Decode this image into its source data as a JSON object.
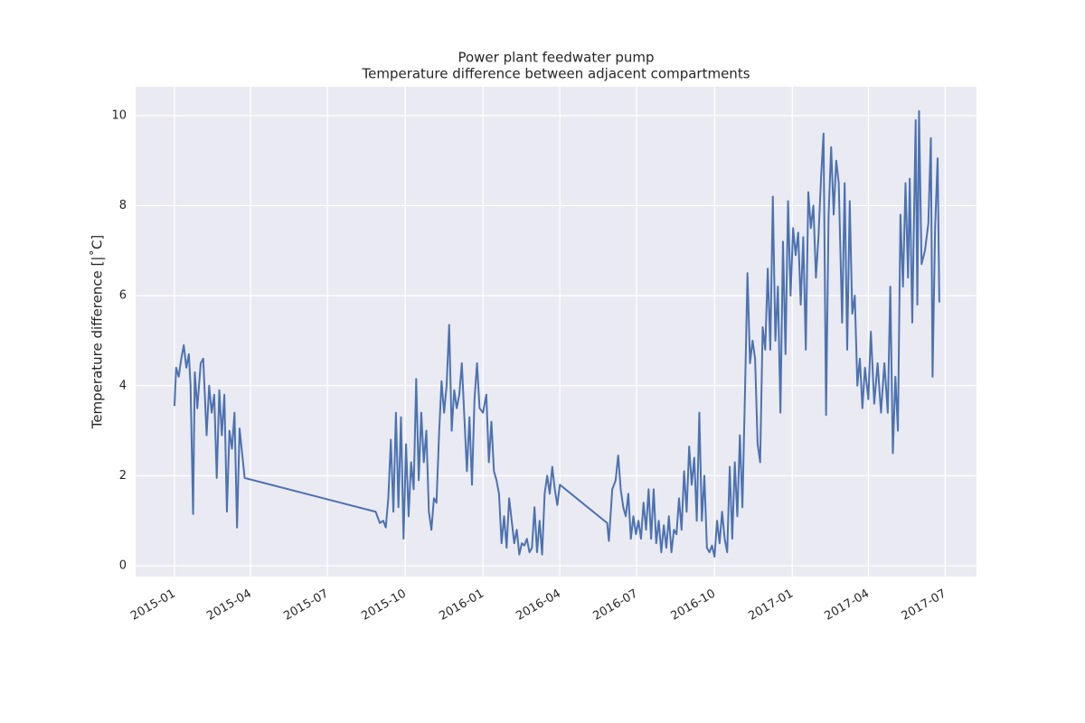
{
  "chart_data": {
    "type": "line",
    "title": "Power plant feedwater pump",
    "subtitle": "Temperature difference between adjacent compartments",
    "y_label": "Temperature difference [|˚C]",
    "color": "#4c72b0",
    "grid": true,
    "ylim": [
      -0.24,
      10.64
    ],
    "yticks": [
      0,
      2,
      4,
      6,
      8,
      10
    ],
    "xlim": [
      "2014-11-16",
      "2017-08-07"
    ],
    "xticks": [
      "2015-01",
      "2015-04",
      "2015-07",
      "2015-10",
      "2016-01",
      "2016-04",
      "2016-07",
      "2016-10",
      "2017-01",
      "2017-04",
      "2017-07"
    ],
    "x": [
      "2015-01-01",
      "2015-01-03",
      "2015-01-06",
      "2015-01-09",
      "2015-01-12",
      "2015-01-15",
      "2015-01-18",
      "2015-01-20",
      "2015-01-23",
      "2015-01-25",
      "2015-01-28",
      "2015-02-01",
      "2015-02-04",
      "2015-02-08",
      "2015-02-11",
      "2015-02-14",
      "2015-02-17",
      "2015-02-20",
      "2015-02-23",
      "2015-02-26",
      "2015-03-01",
      "2015-03-04",
      "2015-03-07",
      "2015-03-10",
      "2015-03-13",
      "2015-03-16",
      "2015-03-19",
      "2015-03-25",
      "2015-08-27",
      "2015-09-01",
      "2015-09-05",
      "2015-09-08",
      "2015-09-11",
      "2015-09-14",
      "2015-09-17",
      "2015-09-20",
      "2015-09-23",
      "2015-09-26",
      "2015-09-29",
      "2015-10-02",
      "2015-10-05",
      "2015-10-08",
      "2015-10-11",
      "2015-10-14",
      "2015-10-17",
      "2015-10-20",
      "2015-10-23",
      "2015-10-26",
      "2015-10-29",
      "2015-11-01",
      "2015-11-04",
      "2015-11-07",
      "2015-11-10",
      "2015-11-13",
      "2015-11-16",
      "2015-11-19",
      "2015-11-22",
      "2015-11-25",
      "2015-11-28",
      "2015-12-01",
      "2015-12-04",
      "2015-12-07",
      "2015-12-10",
      "2015-12-13",
      "2015-12-16",
      "2015-12-19",
      "2015-12-22",
      "2015-12-25",
      "2015-12-28",
      "2016-01-01",
      "2016-01-05",
      "2016-01-08",
      "2016-01-11",
      "2016-01-14",
      "2016-01-17",
      "2016-01-20",
      "2016-01-23",
      "2016-01-26",
      "2016-01-29",
      "2016-02-01",
      "2016-02-04",
      "2016-02-07",
      "2016-02-10",
      "2016-02-13",
      "2016-02-16",
      "2016-02-19",
      "2016-02-22",
      "2016-02-25",
      "2016-02-28",
      "2016-03-02",
      "2016-03-05",
      "2016-03-08",
      "2016-03-11",
      "2016-03-14",
      "2016-03-17",
      "2016-03-20",
      "2016-03-23",
      "2016-03-26",
      "2016-03-29",
      "2016-04-01",
      "2016-05-27",
      "2016-05-29",
      "2016-06-02",
      "2016-06-06",
      "2016-06-09",
      "2016-06-12",
      "2016-06-15",
      "2016-06-18",
      "2016-06-21",
      "2016-06-24",
      "2016-06-27",
      "2016-06-30",
      "2016-07-03",
      "2016-07-06",
      "2016-07-09",
      "2016-07-12",
      "2016-07-15",
      "2016-07-18",
      "2016-07-21",
      "2016-07-24",
      "2016-07-27",
      "2016-07-30",
      "2016-08-02",
      "2016-08-05",
      "2016-08-08",
      "2016-08-11",
      "2016-08-14",
      "2016-08-17",
      "2016-08-20",
      "2016-08-23",
      "2016-08-26",
      "2016-08-29",
      "2016-09-01",
      "2016-09-04",
      "2016-09-07",
      "2016-09-10",
      "2016-09-13",
      "2016-09-16",
      "2016-09-19",
      "2016-09-22",
      "2016-09-25",
      "2016-09-28",
      "2016-10-01",
      "2016-10-04",
      "2016-10-07",
      "2016-10-10",
      "2016-10-13",
      "2016-10-16",
      "2016-10-19",
      "2016-10-22",
      "2016-10-25",
      "2016-10-28",
      "2016-10-31",
      "2016-11-03",
      "2016-11-06",
      "2016-11-09",
      "2016-11-12",
      "2016-11-15",
      "2016-11-18",
      "2016-11-21",
      "2016-11-24",
      "2016-11-27",
      "2016-11-30",
      "2016-12-03",
      "2016-12-06",
      "2016-12-09",
      "2016-12-12",
      "2016-12-15",
      "2016-12-18",
      "2016-12-21",
      "2016-12-24",
      "2016-12-27",
      "2016-12-30",
      "2017-01-02",
      "2017-01-05",
      "2017-01-08",
      "2017-01-11",
      "2017-01-14",
      "2017-01-17",
      "2017-01-20",
      "2017-01-23",
      "2017-01-26",
      "2017-01-29",
      "2017-02-01",
      "2017-02-04",
      "2017-02-07",
      "2017-02-10",
      "2017-02-13",
      "2017-02-16",
      "2017-02-19",
      "2017-02-22",
      "2017-02-25",
      "2017-03-01",
      "2017-03-04",
      "2017-03-07",
      "2017-03-10",
      "2017-03-13",
      "2017-03-16",
      "2017-03-19",
      "2017-03-22",
      "2017-03-25",
      "2017-03-28",
      "2017-04-01",
      "2017-04-04",
      "2017-04-08",
      "2017-04-12",
      "2017-04-16",
      "2017-04-20",
      "2017-04-24",
      "2017-04-27",
      "2017-04-30",
      "2017-05-03",
      "2017-05-06",
      "2017-05-09",
      "2017-05-12",
      "2017-05-15",
      "2017-05-18",
      "2017-05-20",
      "2017-05-23",
      "2017-05-27",
      "2017-05-29",
      "2017-05-31",
      "2017-06-03",
      "2017-06-07",
      "2017-06-11",
      "2017-06-14",
      "2017-06-16",
      "2017-06-19",
      "2017-06-22",
      "2017-06-24"
    ],
    "values": [
      3.55,
      4.4,
      4.2,
      4.6,
      4.9,
      4.4,
      4.7,
      4.0,
      1.15,
      4.3,
      3.5,
      4.5,
      4.6,
      2.9,
      4.0,
      3.4,
      3.8,
      1.95,
      3.9,
      2.9,
      3.8,
      1.2,
      3.0,
      2.6,
      3.4,
      0.85,
      3.05,
      1.95,
      1.2,
      0.95,
      1.0,
      0.85,
      1.5,
      2.8,
      1.2,
      3.4,
      1.3,
      3.3,
      0.6,
      2.7,
      1.1,
      2.3,
      1.7,
      4.15,
      1.9,
      3.4,
      2.3,
      3.0,
      1.2,
      0.8,
      1.5,
      1.4,
      2.9,
      4.1,
      3.4,
      4.0,
      5.35,
      3.0,
      3.9,
      3.5,
      3.8,
      4.5,
      3.3,
      2.1,
      3.3,
      1.8,
      3.7,
      4.5,
      3.5,
      3.4,
      3.8,
      2.3,
      3.2,
      2.1,
      1.9,
      1.6,
      0.5,
      1.1,
      0.4,
      1.5,
      1.0,
      0.5,
      0.8,
      0.25,
      0.5,
      0.45,
      0.6,
      0.3,
      0.4,
      1.3,
      0.3,
      1.0,
      0.25,
      1.6,
      2.0,
      1.6,
      2.2,
      1.7,
      1.35,
      1.8,
      0.95,
      0.55,
      1.7,
      1.9,
      2.45,
      1.7,
      1.3,
      1.1,
      1.6,
      0.6,
      1.1,
      0.7,
      1.0,
      0.6,
      1.4,
      0.8,
      1.7,
      0.6,
      1.7,
      0.5,
      1.0,
      0.3,
      0.9,
      0.4,
      1.1,
      0.3,
      0.8,
      0.7,
      1.5,
      0.8,
      2.1,
      1.2,
      2.65,
      1.8,
      2.4,
      1.0,
      3.4,
      1.0,
      2.0,
      0.4,
      0.3,
      0.45,
      0.2,
      1.0,
      0.5,
      1.2,
      0.6,
      0.3,
      2.2,
      0.6,
      2.3,
      1.1,
      2.9,
      1.3,
      3.8,
      6.5,
      4.5,
      5.0,
      4.6,
      2.7,
      2.3,
      5.3,
      4.8,
      6.6,
      4.8,
      8.2,
      5.0,
      6.2,
      3.4,
      7.2,
      4.7,
      8.1,
      6.0,
      7.5,
      6.9,
      7.4,
      5.8,
      7.3,
      4.8,
      8.3,
      7.5,
      8.0,
      6.4,
      7.3,
      8.6,
      9.6,
      3.35,
      7.8,
      9.3,
      7.8,
      9.0,
      8.5,
      5.4,
      8.5,
      4.8,
      8.1,
      5.6,
      6.0,
      4.0,
      4.6,
      3.5,
      4.4,
      3.7,
      5.2,
      3.6,
      4.5,
      3.4,
      4.5,
      3.4,
      6.2,
      2.5,
      4.2,
      3.0,
      7.8,
      6.2,
      8.5,
      6.4,
      8.6,
      5.4,
      9.9,
      5.8,
      10.1,
      6.7,
      7.0,
      7.6,
      9.5,
      4.2,
      7.5,
      9.05,
      5.85
    ]
  }
}
